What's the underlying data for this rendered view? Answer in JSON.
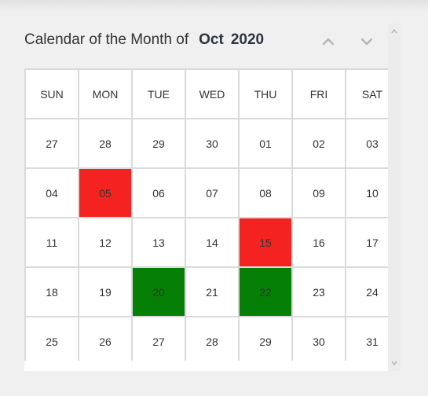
{
  "calendar": {
    "title": "Calendar of the Month of",
    "month": "Oct",
    "year": "2020",
    "weekdays": [
      "SUN",
      "MON",
      "TUE",
      "WED",
      "THU",
      "FRI",
      "SAT"
    ],
    "weeks": [
      [
        {
          "day": "27"
        },
        {
          "day": "28"
        },
        {
          "day": "29"
        },
        {
          "day": "30"
        },
        {
          "day": "01"
        },
        {
          "day": "02"
        },
        {
          "day": "03"
        }
      ],
      [
        {
          "day": "04"
        },
        {
          "day": "05",
          "highlight": "red"
        },
        {
          "day": "06"
        },
        {
          "day": "07"
        },
        {
          "day": "08"
        },
        {
          "day": "09"
        },
        {
          "day": "10"
        }
      ],
      [
        {
          "day": "11"
        },
        {
          "day": "12"
        },
        {
          "day": "13"
        },
        {
          "day": "14"
        },
        {
          "day": "15",
          "highlight": "red"
        },
        {
          "day": "16"
        },
        {
          "day": "17"
        }
      ],
      [
        {
          "day": "18"
        },
        {
          "day": "19"
        },
        {
          "day": "20",
          "highlight": "green"
        },
        {
          "day": "21"
        },
        {
          "day": "22",
          "highlight": "green"
        },
        {
          "day": "23"
        },
        {
          "day": "24"
        }
      ],
      [
        {
          "day": "25"
        },
        {
          "day": "26"
        },
        {
          "day": "27"
        },
        {
          "day": "28"
        },
        {
          "day": "29"
        },
        {
          "day": "30"
        },
        {
          "day": "31"
        }
      ]
    ],
    "colors": {
      "red": "#f52222",
      "green": "#067f06"
    },
    "nav": {
      "prev_icon": "chevron-up-icon",
      "next_icon": "chevron-down-icon"
    }
  }
}
